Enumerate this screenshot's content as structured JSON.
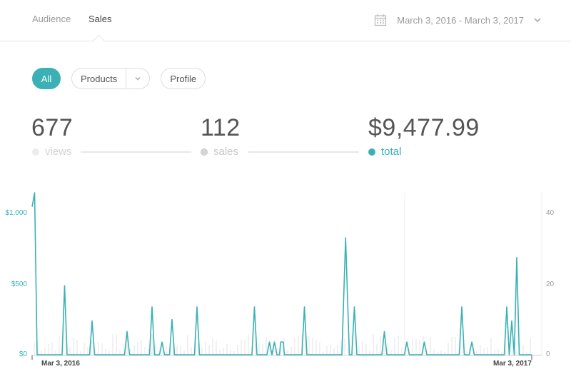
{
  "nav": {
    "tabs": [
      "Audience",
      "Sales"
    ],
    "date_range": "March 3, 2016 - March 3, 2017"
  },
  "filters": {
    "all": "All",
    "products": "Products",
    "profile": "Profile"
  },
  "stats": {
    "views": {
      "value": "677",
      "label": "views"
    },
    "sales": {
      "value": "112",
      "label": "sales"
    },
    "total": {
      "value": "$9,477.99",
      "label": "total"
    }
  },
  "colors": {
    "accent": "#3bb1b5",
    "muted": "#e6e6e6",
    "text": "#555555"
  },
  "chart_data": {
    "type": "line",
    "left_axis": {
      "ticks": [
        "$0",
        "$500",
        "$1,000"
      ],
      "range": [
        0,
        1150
      ]
    },
    "right_axis": {
      "ticks": [
        "0",
        "20",
        "40"
      ],
      "range": [
        0,
        46
      ]
    },
    "x_labels": [
      "Mar 3, 2016",
      "Mar 3, 2017"
    ],
    "series": [
      {
        "values": [
          [
            0,
            1050
          ],
          [
            1,
            1150
          ],
          [
            2,
            0
          ],
          [
            12,
            0
          ],
          [
            13,
            490
          ],
          [
            14,
            0
          ],
          [
            23,
            0
          ],
          [
            24,
            240
          ],
          [
            25,
            0
          ],
          [
            37,
            0
          ],
          [
            38,
            165
          ],
          [
            39,
            0
          ],
          [
            47,
            0
          ],
          [
            48,
            340
          ],
          [
            49,
            0
          ],
          [
            51,
            0
          ],
          [
            52,
            90
          ],
          [
            53,
            0
          ],
          [
            55,
            0
          ],
          [
            56,
            250
          ],
          [
            57,
            0
          ],
          [
            65,
            0
          ],
          [
            66,
            340
          ],
          [
            67,
            0
          ],
          [
            88,
            0
          ],
          [
            89,
            340
          ],
          [
            90,
            0
          ],
          [
            94,
            0
          ],
          [
            95,
            90
          ],
          [
            96,
            0
          ],
          [
            97,
            90
          ],
          [
            98,
            0
          ],
          [
            99,
            0
          ],
          [
            99.5,
            90
          ],
          [
            100.5,
            90
          ],
          [
            101,
            0
          ],
          [
            108,
            0
          ],
          [
            109,
            340
          ],
          [
            110,
            0
          ],
          [
            124,
            0
          ],
          [
            125.5,
            830
          ],
          [
            127,
            0
          ],
          [
            128,
            0
          ],
          [
            129,
            340
          ],
          [
            130,
            0
          ],
          [
            140,
            0
          ],
          [
            141,
            165
          ],
          [
            142,
            0
          ],
          [
            149,
            0
          ],
          [
            150,
            90
          ],
          [
            151,
            0
          ],
          [
            156,
            0
          ],
          [
            157,
            90
          ],
          [
            158,
            0
          ],
          [
            171,
            0
          ],
          [
            172,
            340
          ],
          [
            173,
            0
          ],
          [
            175,
            0
          ],
          [
            176,
            90
          ],
          [
            177,
            0
          ],
          [
            189,
            0
          ],
          [
            190,
            340
          ],
          [
            191,
            0
          ],
          [
            192,
            240
          ],
          [
            193,
            0
          ],
          [
            194,
            690
          ],
          [
            195,
            0
          ],
          [
            200,
            0
          ]
        ]
      }
    ]
  }
}
